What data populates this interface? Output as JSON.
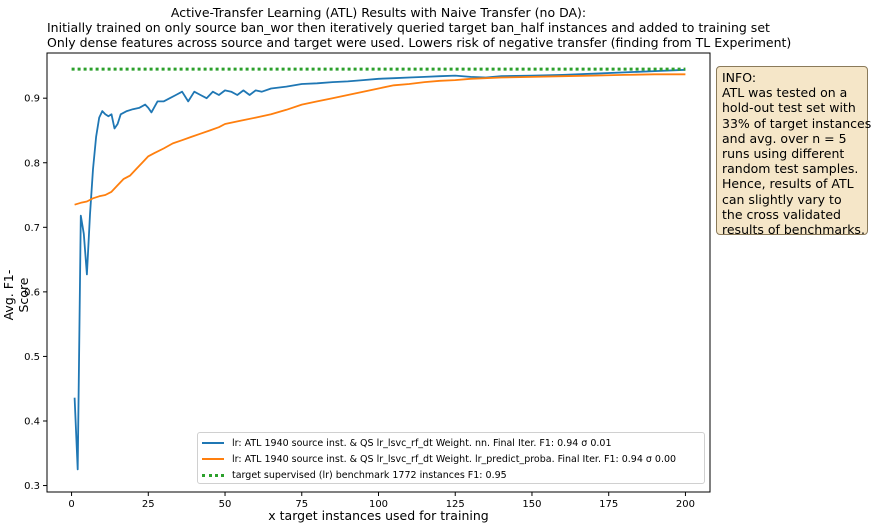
{
  "chart_data": {
    "type": "line",
    "title_lines": [
      "Active-Transfer Learning (ATL) Results with Naive Transfer (no DA):",
      "Initially trained on only source ban_wor then iteratively queried target ban_half instances and added to training set",
      "Only dense features across source and target were used. Lowers risk of negative transfer (finding from TL Experiment)"
    ],
    "xlabel": "x target instances used for training",
    "ylabel": "Avg. F1-Score",
    "xlim": [
      -8,
      208
    ],
    "ylim": [
      0.29,
      0.97
    ],
    "xticks": [
      0,
      25,
      50,
      75,
      100,
      125,
      150,
      175,
      200
    ],
    "yticks": [
      0.3,
      0.4,
      0.5,
      0.6,
      0.7,
      0.8,
      0.9
    ],
    "ytick_labels": [
      "0.3",
      "0.4",
      "0.5",
      "0.6",
      "0.7",
      "0.8",
      "0.9"
    ],
    "grid": false,
    "legend_position": "bottom-right",
    "series": [
      {
        "name": "lr: ATL 1940 source inst. & QS lr_lsvc_rf_dt Weight. nn. Final Iter. F1: 0.94 σ 0.01",
        "color": "#1f77b4",
        "style": "solid",
        "points": [
          [
            1,
            0.436
          ],
          [
            2,
            0.325
          ],
          [
            3,
            0.718
          ],
          [
            4,
            0.69
          ],
          [
            5,
            0.627
          ],
          [
            6,
            0.72
          ],
          [
            7,
            0.79
          ],
          [
            8,
            0.84
          ],
          [
            9,
            0.87
          ],
          [
            10,
            0.88
          ],
          [
            11,
            0.875
          ],
          [
            12,
            0.872
          ],
          [
            13,
            0.875
          ],
          [
            14,
            0.853
          ],
          [
            15,
            0.86
          ],
          [
            16,
            0.875
          ],
          [
            18,
            0.88
          ],
          [
            20,
            0.883
          ],
          [
            22,
            0.885
          ],
          [
            24,
            0.89
          ],
          [
            25,
            0.885
          ],
          [
            26,
            0.878
          ],
          [
            28,
            0.895
          ],
          [
            30,
            0.895
          ],
          [
            32,
            0.9
          ],
          [
            34,
            0.905
          ],
          [
            36,
            0.91
          ],
          [
            38,
            0.895
          ],
          [
            40,
            0.91
          ],
          [
            42,
            0.905
          ],
          [
            44,
            0.9
          ],
          [
            46,
            0.91
          ],
          [
            48,
            0.905
          ],
          [
            50,
            0.912
          ],
          [
            52,
            0.91
          ],
          [
            54,
            0.905
          ],
          [
            56,
            0.912
          ],
          [
            58,
            0.905
          ],
          [
            60,
            0.912
          ],
          [
            62,
            0.91
          ],
          [
            65,
            0.915
          ],
          [
            70,
            0.918
          ],
          [
            75,
            0.922
          ],
          [
            80,
            0.923
          ],
          [
            85,
            0.925
          ],
          [
            90,
            0.926
          ],
          [
            95,
            0.928
          ],
          [
            100,
            0.93
          ],
          [
            105,
            0.931
          ],
          [
            110,
            0.932
          ],
          [
            115,
            0.933
          ],
          [
            120,
            0.934
          ],
          [
            125,
            0.935
          ],
          [
            130,
            0.933
          ],
          [
            135,
            0.932
          ],
          [
            140,
            0.934
          ],
          [
            150,
            0.935
          ],
          [
            160,
            0.936
          ],
          [
            170,
            0.938
          ],
          [
            180,
            0.94
          ],
          [
            190,
            0.942
          ],
          [
            200,
            0.944
          ]
        ]
      },
      {
        "name": "lr: ATL 1940 source inst. & QS lr_lsvc_rf_dt Weight. lr_predict_proba. Final Iter. F1: 0.94 σ 0.00",
        "color": "#ff7f0e",
        "style": "solid",
        "points": [
          [
            1,
            0.735
          ],
          [
            3,
            0.738
          ],
          [
            5,
            0.74
          ],
          [
            7,
            0.745
          ],
          [
            9,
            0.748
          ],
          [
            11,
            0.75
          ],
          [
            13,
            0.755
          ],
          [
            15,
            0.765
          ],
          [
            17,
            0.775
          ],
          [
            19,
            0.78
          ],
          [
            21,
            0.79
          ],
          [
            23,
            0.8
          ],
          [
            25,
            0.81
          ],
          [
            27,
            0.815
          ],
          [
            30,
            0.822
          ],
          [
            33,
            0.83
          ],
          [
            36,
            0.835
          ],
          [
            39,
            0.84
          ],
          [
            42,
            0.845
          ],
          [
            45,
            0.85
          ],
          [
            48,
            0.855
          ],
          [
            50,
            0.86
          ],
          [
            55,
            0.865
          ],
          [
            60,
            0.87
          ],
          [
            65,
            0.875
          ],
          [
            70,
            0.882
          ],
          [
            75,
            0.89
          ],
          [
            80,
            0.895
          ],
          [
            85,
            0.9
          ],
          [
            90,
            0.905
          ],
          [
            95,
            0.91
          ],
          [
            100,
            0.915
          ],
          [
            105,
            0.92
          ],
          [
            110,
            0.922
          ],
          [
            115,
            0.925
          ],
          [
            120,
            0.927
          ],
          [
            125,
            0.928
          ],
          [
            130,
            0.93
          ],
          [
            140,
            0.932
          ],
          [
            150,
            0.933
          ],
          [
            160,
            0.934
          ],
          [
            170,
            0.935
          ],
          [
            180,
            0.936
          ],
          [
            190,
            0.937
          ],
          [
            200,
            0.937
          ]
        ]
      },
      {
        "name": "target supervised (lr) benchmark 1772 instances F1: 0.95",
        "color": "#2ca02c",
        "style": "dotted",
        "points": [
          [
            0,
            0.945
          ],
          [
            200,
            0.945
          ]
        ]
      }
    ]
  },
  "info_box": {
    "lines": [
      "INFO:",
      "ATL was tested on a",
      "hold-out test set with",
      "33% of target instances",
      "and avg. over n = 5",
      "runs using different",
      "random test samples.",
      "Hence, results of ATL",
      "can slightly vary to",
      "the cross validated",
      "results of benchmarks."
    ],
    "background": "#f5e6c8"
  }
}
